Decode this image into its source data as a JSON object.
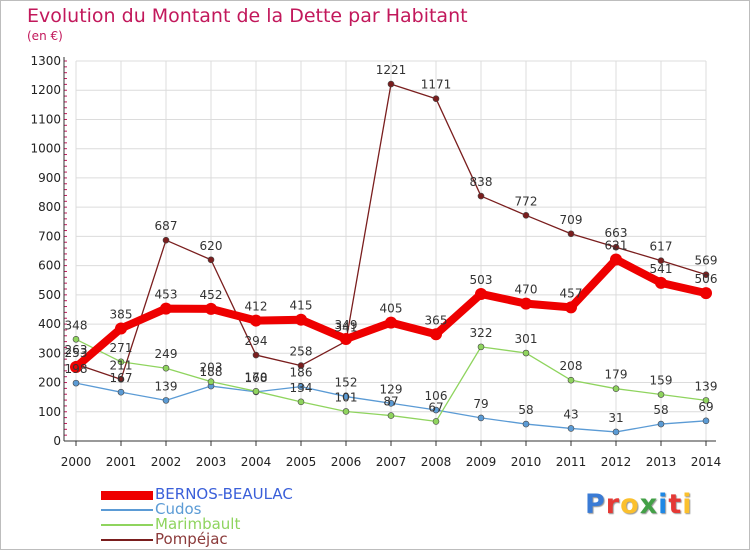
{
  "header": {
    "title": "Evolution du Montant de la Dette par Habitant",
    "unit": "(en €)"
  },
  "colors": {
    "title": "#c2185b",
    "grid": "#dcdcdc",
    "axis": "#333333",
    "tick_marks": "#c2185b"
  },
  "brand": {
    "text": "Proxiti",
    "letter_colors": [
      "#3a7bd5",
      "#e53935",
      "#fbc02d",
      "#43a047",
      "#1e88e5",
      "#e53935",
      "#fbc02d"
    ]
  },
  "chart_data": {
    "type": "line",
    "title": "Evolution du Montant de la Dette par Habitant",
    "subtitle": "(en €)",
    "x": [
      2000,
      2001,
      2002,
      2003,
      2004,
      2005,
      2006,
      2007,
      2008,
      2009,
      2010,
      2011,
      2012,
      2013,
      2014
    ],
    "ylim": [
      0,
      1300
    ],
    "yticks": [
      0,
      100,
      200,
      300,
      400,
      500,
      600,
      700,
      800,
      900,
      1000,
      1100,
      1200,
      1300
    ],
    "grid": true,
    "legend_position": "bottom-left",
    "series": [
      {
        "name": "BERNOS-BEAULAC",
        "color": "#ee0000",
        "values": [
          253,
          385,
          453,
          452,
          412,
          415,
          349,
          405,
          365,
          503,
          470,
          457,
          621,
          541,
          506
        ],
        "labels": [
          "253",
          "385",
          "453",
          "452",
          "412",
          "415",
          "349",
          "405",
          "365",
          "503",
          "470",
          "457",
          "621",
          "541",
          "506"
        ]
      },
      {
        "name": "Cudos",
        "color": "#5b9bd5",
        "values": [
          198,
          167,
          139,
          188,
          168,
          186,
          152,
          129,
          106,
          79,
          58,
          43,
          31,
          58,
          69
        ],
        "labels": [
          "198",
          "167",
          "139",
          "188",
          "168",
          "186",
          "152",
          "129",
          "106",
          "79",
          "58",
          "43",
          "31",
          "58",
          "69"
        ]
      },
      {
        "name": "Marimbault",
        "color": "#8fd45e",
        "values": [
          348,
          271,
          249,
          203,
          170,
          134,
          101,
          87,
          67,
          322,
          301,
          208,
          179,
          159,
          139
        ],
        "labels": [
          "348",
          "271",
          "249",
          "203",
          "170",
          "134",
          "101",
          "87",
          "67",
          "322",
          "301",
          "208",
          "179",
          "159",
          "139"
        ]
      },
      {
        "name": "Pompéjac",
        "color": "#7a1e1e",
        "values": [
          263,
          211,
          687,
          620,
          294,
          258,
          341,
          1221,
          1171,
          838,
          772,
          709,
          663,
          617,
          569
        ],
        "labels": [
          "263",
          "211",
          "687",
          "620",
          "294",
          "258",
          "341",
          "1221",
          "1171",
          "838",
          "772",
          "709",
          "663",
          "617",
          "569"
        ]
      }
    ]
  }
}
